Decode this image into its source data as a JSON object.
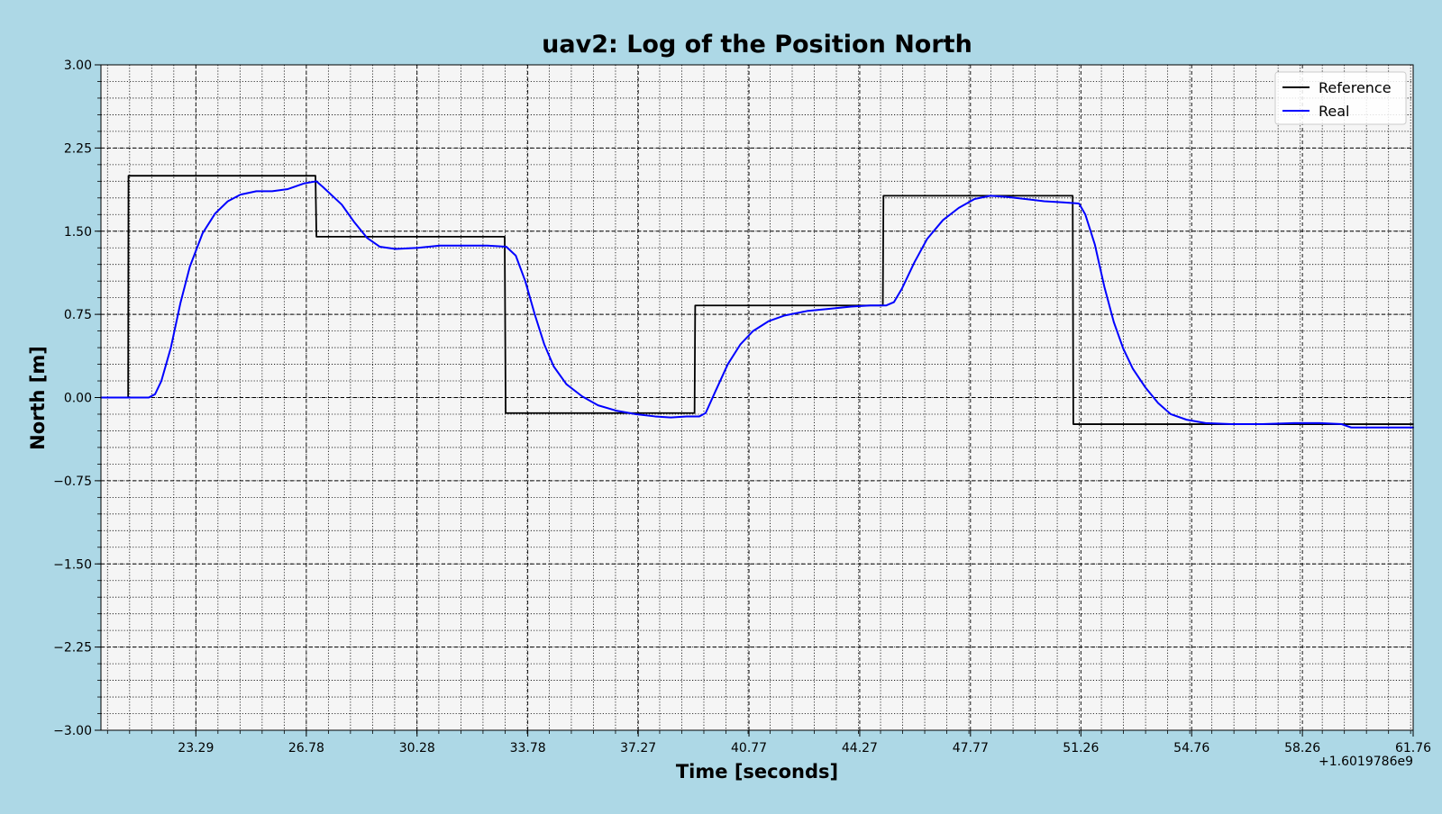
{
  "chart_data": {
    "type": "line",
    "title": "uav2: Log of the Position North",
    "xlabel": "Time [seconds]",
    "ylabel": "North [m]",
    "x_offset_label": "+1.6019786e9",
    "xlim": [
      20.29,
      61.76
    ],
    "ylim": [
      -3.0,
      3.0
    ],
    "x_ticks": [
      23.29,
      26.78,
      30.28,
      33.78,
      37.27,
      40.77,
      44.27,
      47.77,
      51.26,
      54.76,
      58.26,
      61.76
    ],
    "x_tick_labels": [
      "23.29",
      "26.78",
      "30.28",
      "33.78",
      "37.27",
      "40.77",
      "44.27",
      "47.77",
      "51.26",
      "54.76",
      "58.26",
      "61.76"
    ],
    "y_ticks": [
      -3.0,
      -2.25,
      -1.5,
      -0.75,
      0.0,
      0.75,
      1.5,
      2.25,
      3.0
    ],
    "y_tick_labels": [
      "−3.00",
      "−2.25",
      "−1.50",
      "−0.75",
      "0.00",
      "0.75",
      "1.50",
      "2.25",
      "3.00"
    ],
    "grid": true,
    "legend_position": "top-right",
    "background_color": "#f5f5f5",
    "series": [
      {
        "name": "Reference",
        "color": "#000000",
        "points": [
          [
            20.29,
            0.0
          ],
          [
            21.15,
            0.0
          ],
          [
            21.16,
            2.0
          ],
          [
            27.07,
            2.0
          ],
          [
            27.1,
            1.45
          ],
          [
            33.05,
            1.45
          ],
          [
            33.08,
            -0.14
          ],
          [
            39.05,
            -0.14
          ],
          [
            39.07,
            0.83
          ],
          [
            45.0,
            0.83
          ],
          [
            45.02,
            1.82
          ],
          [
            51.0,
            1.82
          ],
          [
            51.02,
            -0.24
          ],
          [
            61.76,
            -0.24
          ]
        ]
      },
      {
        "name": "Real",
        "color": "#0000ff",
        "points": [
          [
            20.29,
            0.0
          ],
          [
            21.5,
            0.0
          ],
          [
            21.8,
            0.0
          ],
          [
            22.0,
            0.03
          ],
          [
            22.2,
            0.15
          ],
          [
            22.5,
            0.45
          ],
          [
            22.8,
            0.85
          ],
          [
            23.1,
            1.18
          ],
          [
            23.5,
            1.48
          ],
          [
            23.9,
            1.66
          ],
          [
            24.3,
            1.77
          ],
          [
            24.7,
            1.83
          ],
          [
            25.2,
            1.86
          ],
          [
            25.7,
            1.86
          ],
          [
            26.2,
            1.88
          ],
          [
            26.7,
            1.93
          ],
          [
            27.1,
            1.95
          ],
          [
            27.3,
            1.9
          ],
          [
            27.9,
            1.74
          ],
          [
            28.3,
            1.58
          ],
          [
            28.7,
            1.44
          ],
          [
            29.1,
            1.36
          ],
          [
            29.6,
            1.34
          ],
          [
            30.3,
            1.35
          ],
          [
            31.0,
            1.37
          ],
          [
            31.8,
            1.37
          ],
          [
            32.5,
            1.37
          ],
          [
            33.1,
            1.36
          ],
          [
            33.4,
            1.28
          ],
          [
            33.7,
            1.05
          ],
          [
            34.0,
            0.75
          ],
          [
            34.3,
            0.48
          ],
          [
            34.6,
            0.28
          ],
          [
            35.0,
            0.12
          ],
          [
            35.5,
            0.01
          ],
          [
            36.0,
            -0.07
          ],
          [
            36.6,
            -0.12
          ],
          [
            37.2,
            -0.15
          ],
          [
            37.8,
            -0.17
          ],
          [
            38.3,
            -0.18
          ],
          [
            38.8,
            -0.17
          ],
          [
            39.2,
            -0.17
          ],
          [
            39.4,
            -0.14
          ],
          [
            39.7,
            0.05
          ],
          [
            40.1,
            0.3
          ],
          [
            40.5,
            0.48
          ],
          [
            40.9,
            0.6
          ],
          [
            41.4,
            0.69
          ],
          [
            41.9,
            0.74
          ],
          [
            42.6,
            0.78
          ],
          [
            43.3,
            0.8
          ],
          [
            44.0,
            0.82
          ],
          [
            44.6,
            0.83
          ],
          [
            45.1,
            0.83
          ],
          [
            45.35,
            0.86
          ],
          [
            45.6,
            0.98
          ],
          [
            46.0,
            1.22
          ],
          [
            46.4,
            1.43
          ],
          [
            46.9,
            1.6
          ],
          [
            47.4,
            1.71
          ],
          [
            47.9,
            1.79
          ],
          [
            48.4,
            1.82
          ],
          [
            48.9,
            1.81
          ],
          [
            49.5,
            1.79
          ],
          [
            50.1,
            1.77
          ],
          [
            50.7,
            1.76
          ],
          [
            51.2,
            1.75
          ],
          [
            51.4,
            1.65
          ],
          [
            51.7,
            1.38
          ],
          [
            52.0,
            1.0
          ],
          [
            52.3,
            0.68
          ],
          [
            52.6,
            0.44
          ],
          [
            52.9,
            0.26
          ],
          [
            53.3,
            0.09
          ],
          [
            53.7,
            -0.05
          ],
          [
            54.1,
            -0.15
          ],
          [
            54.6,
            -0.2
          ],
          [
            55.2,
            -0.23
          ],
          [
            56.0,
            -0.24
          ],
          [
            57.0,
            -0.24
          ],
          [
            58.0,
            -0.23
          ],
          [
            58.8,
            -0.23
          ],
          [
            59.5,
            -0.24
          ],
          [
            59.8,
            -0.27
          ],
          [
            61.76,
            -0.27
          ]
        ]
      }
    ]
  }
}
